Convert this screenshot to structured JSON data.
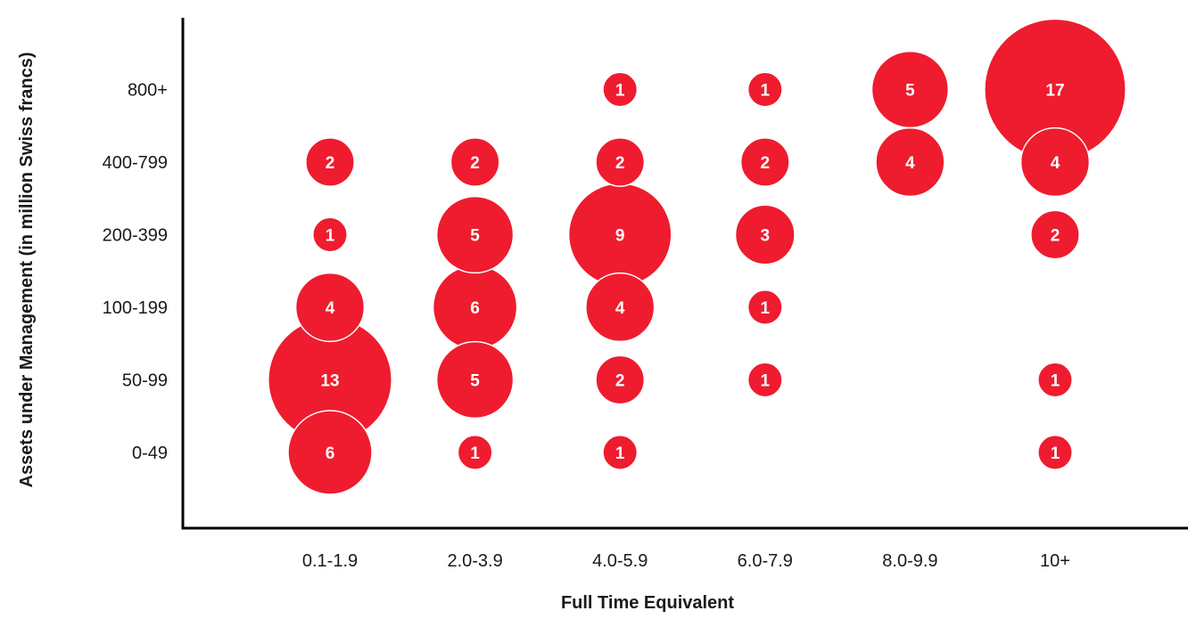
{
  "chart_data": {
    "type": "bubble",
    "title": "",
    "xlabel": "Full Time Equivalent",
    "ylabel": "Assets under Management (in million Swiss francs)",
    "x_categories": [
      "0.1-1.9",
      "2.0-3.9",
      "4.0-5.9",
      "6.0-7.9",
      "8.0-9.9",
      "10+"
    ],
    "y_categories": [
      "0-49",
      "50-99",
      "100-199",
      "200-399",
      "400-799",
      "800+"
    ],
    "bubble_color": "#EE1C2E",
    "label_color": "#FFFFFF",
    "points": [
      {
        "x": "0.1-1.9",
        "y": "0-49",
        "value": 6
      },
      {
        "x": "0.1-1.9",
        "y": "50-99",
        "value": 13
      },
      {
        "x": "0.1-1.9",
        "y": "100-199",
        "value": 4
      },
      {
        "x": "0.1-1.9",
        "y": "200-399",
        "value": 1
      },
      {
        "x": "0.1-1.9",
        "y": "400-799",
        "value": 2
      },
      {
        "x": "2.0-3.9",
        "y": "0-49",
        "value": 1
      },
      {
        "x": "2.0-3.9",
        "y": "50-99",
        "value": 5
      },
      {
        "x": "2.0-3.9",
        "y": "100-199",
        "value": 6
      },
      {
        "x": "2.0-3.9",
        "y": "200-399",
        "value": 5
      },
      {
        "x": "2.0-3.9",
        "y": "400-799",
        "value": 2
      },
      {
        "x": "4.0-5.9",
        "y": "0-49",
        "value": 1
      },
      {
        "x": "4.0-5.9",
        "y": "50-99",
        "value": 2
      },
      {
        "x": "4.0-5.9",
        "y": "100-199",
        "value": 4
      },
      {
        "x": "4.0-5.9",
        "y": "200-399",
        "value": 9
      },
      {
        "x": "4.0-5.9",
        "y": "400-799",
        "value": 2
      },
      {
        "x": "4.0-5.9",
        "y": "800+",
        "value": 1
      },
      {
        "x": "6.0-7.9",
        "y": "50-99",
        "value": 1
      },
      {
        "x": "6.0-7.9",
        "y": "100-199",
        "value": 1
      },
      {
        "x": "6.0-7.9",
        "y": "200-399",
        "value": 3
      },
      {
        "x": "6.0-7.9",
        "y": "400-799",
        "value": 2
      },
      {
        "x": "6.0-7.9",
        "y": "800+",
        "value": 1
      },
      {
        "x": "8.0-9.9",
        "y": "400-799",
        "value": 4
      },
      {
        "x": "8.0-9.9",
        "y": "800+",
        "value": 5
      },
      {
        "x": "10+",
        "y": "0-49",
        "value": 1
      },
      {
        "x": "10+",
        "y": "50-99",
        "value": 1
      },
      {
        "x": "10+",
        "y": "200-399",
        "value": 2
      },
      {
        "x": "10+",
        "y": "400-799",
        "value": 4
      },
      {
        "x": "10+",
        "y": "800+",
        "value": 17
      }
    ]
  }
}
